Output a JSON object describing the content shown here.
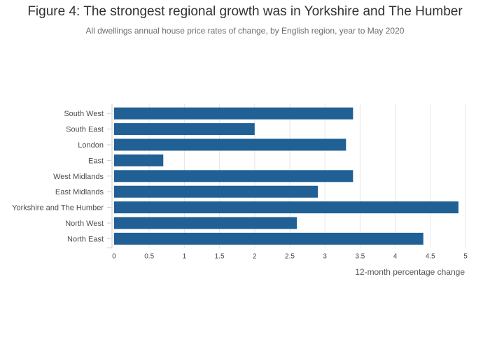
{
  "header": {
    "title": "Figure 4: The strongest regional growth was in Yorkshire and The Humber",
    "subtitle": "All dwellings annual house price rates of change, by English region, year to May 2020"
  },
  "chart_data": {
    "type": "bar",
    "orientation": "horizontal",
    "categories": [
      "South West",
      "South East",
      "London",
      "East",
      "West Midlands",
      "East Midlands",
      "Yorkshire and The Humber",
      "North West",
      "North East"
    ],
    "values": [
      3.4,
      2.0,
      3.3,
      0.7,
      3.4,
      2.9,
      4.9,
      2.6,
      4.4
    ],
    "xlabel": "12-month percentage change",
    "ylabel": "",
    "xlim": [
      0,
      5
    ],
    "xticks": [
      "0",
      "0.5",
      "1",
      "1.5",
      "2",
      "2.5",
      "3",
      "3.5",
      "4",
      "4.5",
      "5"
    ],
    "grid": true,
    "bar_color": "#206095"
  }
}
